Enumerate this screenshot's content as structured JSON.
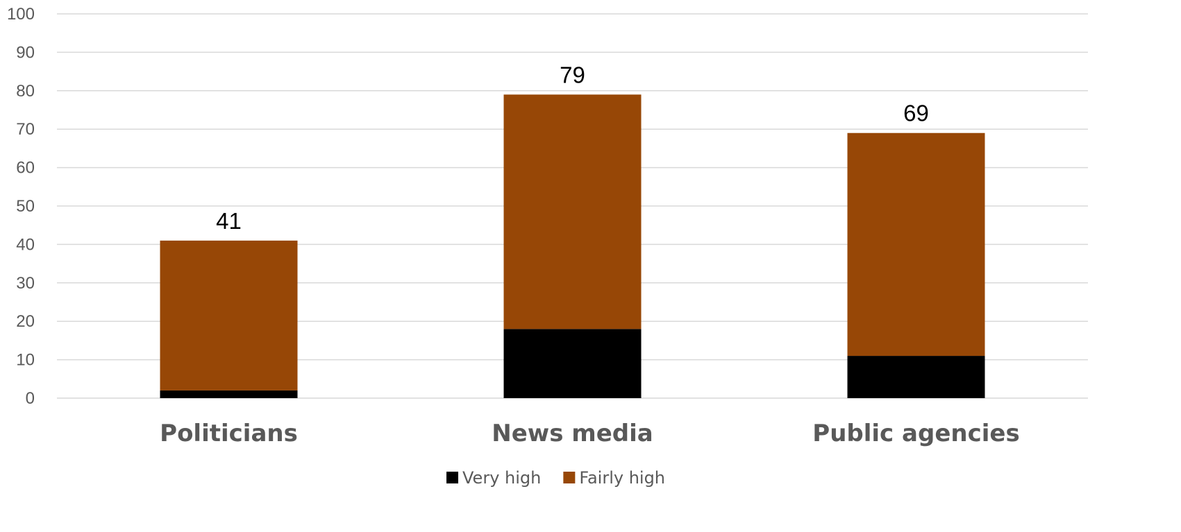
{
  "chart_data": {
    "type": "bar",
    "stacked": true,
    "categories": [
      "Politicians",
      "News media",
      "Public agencies"
    ],
    "series": [
      {
        "name": "Very high",
        "values": [
          2,
          18,
          11
        ],
        "color": "#000000"
      },
      {
        "name": "Fairly high",
        "values": [
          39,
          61,
          58
        ],
        "color": "#974706"
      }
    ],
    "totals": [
      41,
      79,
      69
    ],
    "ylim": [
      0,
      100
    ],
    "yticks": [
      0,
      10,
      20,
      30,
      40,
      50,
      60,
      70,
      80,
      90,
      100
    ],
    "grid": true,
    "legend_position": "bottom",
    "gridline_color": "#d9d9d9"
  }
}
